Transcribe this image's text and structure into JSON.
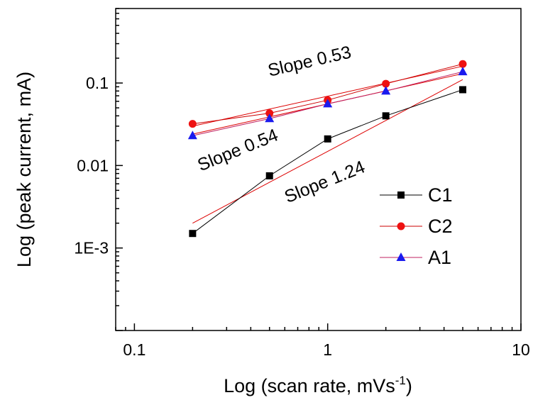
{
  "chart_data": {
    "type": "scatter",
    "title": "",
    "x_scale": "log",
    "y_scale": "log",
    "xlim": [
      0.08,
      10
    ],
    "ylim": [
      0.0001,
      0.8
    ],
    "xlabel_main": "Log (scan rate, mVs",
    "xlabel_sup": "-1",
    "xlabel_close": ")",
    "ylabel": "Log (peak current, mA)",
    "x_ticks": [
      {
        "value": 0.1,
        "label": "0.1"
      },
      {
        "value": 1,
        "label": "1"
      },
      {
        "value": 10,
        "label": "10"
      }
    ],
    "y_ticks": [
      {
        "value": 0.001,
        "label": "1E-3"
      },
      {
        "value": 0.01,
        "label": "0.01"
      },
      {
        "value": 0.1,
        "label": "0.1"
      }
    ],
    "grid": false,
    "legend_position": "bottom-right",
    "series": [
      {
        "name": "C1",
        "marker": "square",
        "color": "#000000",
        "line_color": "#000000",
        "x": [
          0.2,
          0.5,
          1,
          2,
          5
        ],
        "y": [
          0.0015,
          0.0075,
          0.021,
          0.04,
          0.083
        ]
      },
      {
        "name": "C2",
        "marker": "circle",
        "color": "#ee1111",
        "line_color": "#cc0000",
        "x": [
          0.2,
          0.5,
          1,
          2,
          5
        ],
        "y": [
          0.032,
          0.043,
          0.062,
          0.098,
          0.17
        ]
      },
      {
        "name": "A1",
        "marker": "triangle",
        "color": "#1a1aee",
        "line_color": "#c02060",
        "x": [
          0.2,
          0.5,
          1,
          2,
          5
        ],
        "y": [
          0.023,
          0.037,
          0.056,
          0.08,
          0.137
        ]
      }
    ],
    "fits": [
      {
        "label": "Slope 1.24",
        "color": "#dd0000",
        "x": [
          0.2,
          5
        ],
        "y": [
          0.002,
          0.11
        ]
      },
      {
        "label": "Slope 0.53",
        "color": "#dd0000",
        "x": [
          0.2,
          5
        ],
        "y": [
          0.03,
          0.16
        ]
      },
      {
        "label": "Slope 0.54",
        "color": "#dd0000",
        "x": [
          0.2,
          5
        ],
        "y": [
          0.024,
          0.13
        ]
      }
    ],
    "annotations": [
      {
        "text": "Slope 0.53",
        "x": 0.5,
        "y": 0.12,
        "angle": -13
      },
      {
        "text": "Slope 0.54",
        "x": 0.22,
        "y": 0.0085,
        "angle": -22
      },
      {
        "text": "Slope 1.24",
        "x": 0.62,
        "y": 0.0035,
        "angle": -22
      }
    ]
  }
}
